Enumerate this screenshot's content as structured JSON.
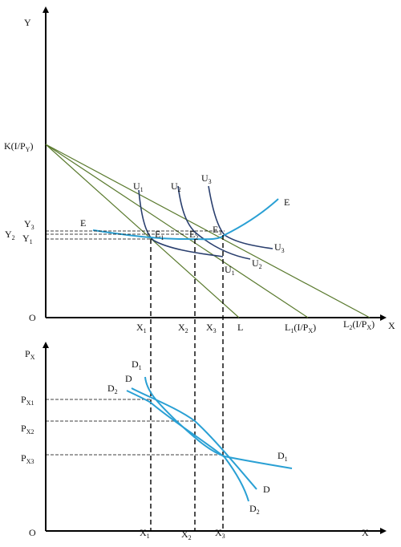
{
  "top_panel": {
    "y_axis_label": "Y",
    "x_axis_label": "X",
    "origin_label": "O",
    "intercept_label": "K(I/P",
    "intercept_sub": "Y",
    "intercept_close": ")",
    "y_levels": [
      {
        "main": "Y",
        "sub": "3"
      },
      {
        "main": "Y",
        "sub": "2"
      },
      {
        "main": "Y",
        "sub": "1"
      }
    ],
    "x_levels": [
      {
        "main": "X",
        "sub": "1"
      },
      {
        "main": "X",
        "sub": "2"
      },
      {
        "main": "X",
        "sub": "3"
      }
    ],
    "budget_labels": [
      {
        "main": "L",
        "sub": "",
        "tail": ""
      },
      {
        "main": "L",
        "sub": "1",
        "tail": "(I/P",
        "tail_sub": "X",
        "close": ")"
      },
      {
        "main": "L",
        "sub": "2",
        "tail": "(I/P",
        "tail_sub": "X",
        "close": ")"
      }
    ],
    "indifference_labels": [
      {
        "main": "U",
        "sub": "1"
      },
      {
        "main": "U",
        "sub": "2"
      },
      {
        "main": "U",
        "sub": "3"
      },
      {
        "main": "U",
        "sub": "1"
      },
      {
        "main": "U",
        "sub": "2"
      },
      {
        "main": "U",
        "sub": "3"
      }
    ],
    "equilibrium_labels": [
      {
        "main": "E",
        "sub": "1"
      },
      {
        "main": "E",
        "sub": "2"
      },
      {
        "main": "E",
        "sub": "3"
      }
    ],
    "pcc_labels": [
      "E",
      "E"
    ]
  },
  "bottom_panel": {
    "y_axis_label": "P",
    "y_axis_sub": "X",
    "x_axis_label": "X",
    "origin_label": "O",
    "price_levels": [
      {
        "main": "P",
        "sub": "X1"
      },
      {
        "main": "P",
        "sub": "X2"
      },
      {
        "main": "P",
        "sub": "X3"
      }
    ],
    "x_levels": [
      {
        "main": "X",
        "sub": "1"
      },
      {
        "main": "X",
        "sub": "2"
      },
      {
        "main": "X",
        "sub": "3"
      }
    ],
    "curve_labels": [
      {
        "main": "D",
        "sub": "1"
      },
      {
        "main": "D",
        "sub": ""
      },
      {
        "main": "D",
        "sub": "2"
      },
      {
        "main": "D",
        "sub": "1"
      },
      {
        "main": "D",
        "sub": ""
      },
      {
        "main": "D",
        "sub": "2"
      }
    ]
  },
  "colors": {
    "axis": "#000000",
    "budget_line": "#5a7a2e",
    "indifference_curve": "#2a3f6e",
    "pcc_and_demand": "#2aa0d4",
    "guide_line": "#000000"
  }
}
